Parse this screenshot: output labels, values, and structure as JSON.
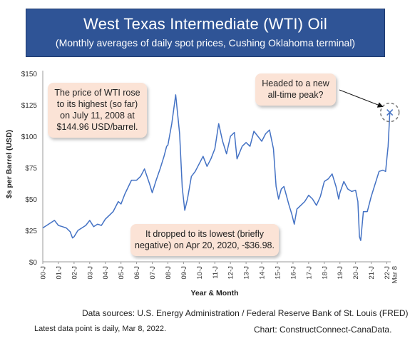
{
  "header": {
    "title": "West Texas Intermediate (WTI) Oil",
    "subtitle": "(Monthly averages of daily spot prices, Cushing Oklahoma terminal)"
  },
  "annotations": {
    "peak": "The price of WTI rose to its highest (so far) on July 11, 2008 at $144.96 USD/barrel.",
    "low": "It dropped to its lowest (briefly negative) on Apr 20, 2020,  -$36.98.",
    "latest": "Headed to a new all-time peak?"
  },
  "footer": {
    "sources": "Data sources: U.S. Energy Administration / Federal Reserve Bank of St. Louis (FRED)",
    "latest_note": "Latest data point is daily, Mar 8, 2022.",
    "credit": "Chart: ConstructConnect-CanaData."
  },
  "colors": {
    "line": "#4472c4",
    "title_bg": "#2f5496",
    "callout_bg": "#fbe3d6",
    "marker_ring": "#777777"
  },
  "chart_data": {
    "type": "line",
    "xlabel": "Year & Month",
    "ylabel": "$s per Barrel (USD)",
    "ylim": [
      0,
      150
    ],
    "yticks": [
      "$0",
      "$25",
      "$50",
      "$75",
      "$100",
      "$125",
      "$150"
    ],
    "ytick_values": [
      0,
      25,
      50,
      75,
      100,
      125,
      150
    ],
    "xticks": [
      "00-J",
      "01-J",
      "02-J",
      "03-J",
      "04-J",
      "05-J",
      "06-J",
      "07-J",
      "08-J",
      "09-J",
      "10-J",
      "11-J",
      "12-J",
      "13-J",
      "14-J",
      "15-J",
      "16-J",
      "17-J",
      "18-J",
      "19-J",
      "20-J",
      "21-J",
      "22-J"
    ],
    "last_tick": "Mar 8",
    "grid": false,
    "series": [
      {
        "x": [
          2000.0,
          2000.25,
          2000.5,
          2000.75,
          2001.0,
          2001.25,
          2001.5,
          2001.75,
          2001.9,
          2002.0,
          2002.25,
          2002.5,
          2002.75,
          2003.0,
          2003.25,
          2003.5,
          2003.75,
          2004.0,
          2004.25,
          2004.5,
          2004.83,
          2005.0,
          2005.25,
          2005.67,
          2006.0,
          2006.25,
          2006.5,
          2006.83,
          2007.0,
          2007.25,
          2007.5,
          2007.75,
          2007.92,
          2008.0,
          2008.25,
          2008.5,
          2008.75,
          2008.92,
          2009.08,
          2009.25,
          2009.5,
          2009.75,
          2010.0,
          2010.25,
          2010.5,
          2010.75,
          2011.0,
          2011.25,
          2011.5,
          2011.75,
          2012.0,
          2012.25,
          2012.42,
          2012.75,
          2013.0,
          2013.25,
          2013.5,
          2013.75,
          2014.0,
          2014.25,
          2014.5,
          2014.75,
          2014.92,
          2015.08,
          2015.25,
          2015.42,
          2015.75,
          2015.92,
          2016.08,
          2016.25,
          2016.5,
          2016.75,
          2017.0,
          2017.25,
          2017.5,
          2017.75,
          2018.0,
          2018.25,
          2018.5,
          2018.75,
          2018.92,
          2019.0,
          2019.25,
          2019.5,
          2019.75,
          2020.0,
          2020.15,
          2020.25,
          2020.33,
          2020.5,
          2020.75,
          2021.0,
          2021.25,
          2021.5,
          2021.75,
          2021.92,
          2022.0,
          2022.08,
          2022.19
        ],
        "y": [
          27,
          29,
          31,
          33,
          29,
          28,
          27,
          24,
          19,
          20,
          25,
          27,
          29,
          33,
          28,
          30,
          29,
          34,
          37,
          40,
          48,
          46,
          54,
          65,
          65,
          68,
          74,
          62,
          55,
          65,
          74,
          84,
          92,
          93,
          110,
          133,
          102,
          59,
          41,
          50,
          68,
          72,
          78,
          84,
          76,
          82,
          90,
          110,
          96,
          86,
          100,
          103,
          82,
          92,
          95,
          92,
          104,
          100,
          96,
          102,
          105,
          90,
          60,
          50,
          58,
          60,
          45,
          38,
          30,
          42,
          45,
          48,
          53,
          50,
          45,
          52,
          64,
          66,
          70,
          60,
          50,
          55,
          64,
          58,
          56,
          57,
          48,
          20,
          17,
          40,
          40,
          52,
          62,
          72,
          73,
          72,
          82,
          92,
          119
        ]
      }
    ]
  }
}
